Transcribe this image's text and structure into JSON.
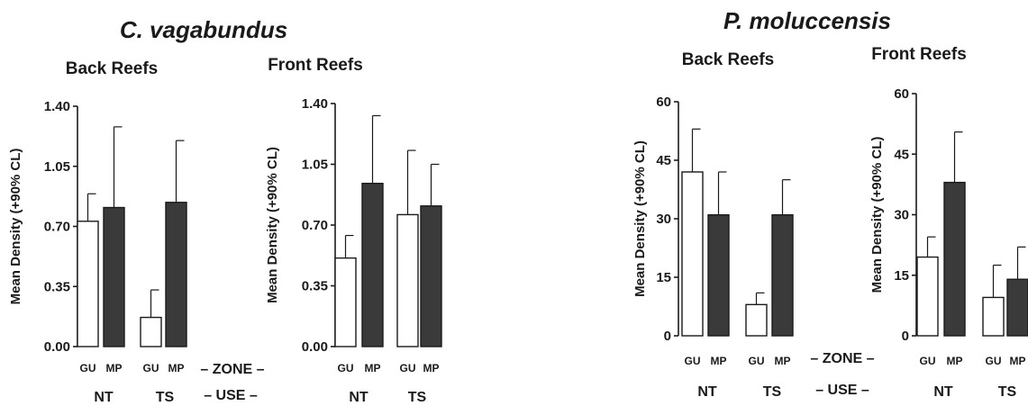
{
  "figure": {
    "axis_labels": {
      "zone": "– ZONE –",
      "use": "– USE –"
    }
  },
  "colors": {
    "GU": "#ffffff",
    "MP": "#3a3a3a",
    "axis": "#1a1a1a"
  },
  "chart_data": [
    {
      "type": "bar",
      "species": "C. vagabundus",
      "title": "Back Reefs",
      "ylabel": "Mean Density (+90% CL)",
      "ylim": [
        0,
        1.4
      ],
      "yticks": [
        "0.00",
        "0.35",
        "0.70",
        "1.05",
        "1.40"
      ],
      "ytick_values": [
        0,
        0.35,
        0.7,
        1.05,
        1.4
      ],
      "groups": [
        "NT",
        "TS"
      ],
      "categories": [
        "GU",
        "MP",
        "GU",
        "MP"
      ],
      "series": [
        {
          "zone": "GU",
          "use": "NT",
          "value": 0.73,
          "upper": 0.89
        },
        {
          "zone": "MP",
          "use": "NT",
          "value": 0.81,
          "upper": 1.28
        },
        {
          "zone": "GU",
          "use": "TS",
          "value": 0.17,
          "upper": 0.33
        },
        {
          "zone": "MP",
          "use": "TS",
          "value": 0.84,
          "upper": 1.2
        }
      ]
    },
    {
      "type": "bar",
      "species": "C. vagabundus",
      "title": "Front Reefs",
      "ylabel": "Mean Density (+90% CL)",
      "ylim": [
        0,
        1.4
      ],
      "yticks": [
        "0.00",
        "0.35",
        "0.70",
        "1.05",
        "1.40"
      ],
      "ytick_values": [
        0,
        0.35,
        0.7,
        1.05,
        1.4
      ],
      "groups": [
        "NT",
        "TS"
      ],
      "categories": [
        "GU",
        "MP",
        "GU",
        "MP"
      ],
      "series": [
        {
          "zone": "GU",
          "use": "NT",
          "value": 0.51,
          "upper": 0.64
        },
        {
          "zone": "MP",
          "use": "NT",
          "value": 0.94,
          "upper": 1.33
        },
        {
          "zone": "GU",
          "use": "TS",
          "value": 0.76,
          "upper": 1.13
        },
        {
          "zone": "MP",
          "use": "TS",
          "value": 0.81,
          "upper": 1.05
        }
      ]
    },
    {
      "type": "bar",
      "species": "P. moluccensis",
      "title": "Back Reefs",
      "ylabel": "Mean Density (+90% CL)",
      "ylim": [
        0,
        60
      ],
      "yticks": [
        "0",
        "15",
        "30",
        "45",
        "60"
      ],
      "ytick_values": [
        0,
        15,
        30,
        45,
        60
      ],
      "groups": [
        "NT",
        "TS"
      ],
      "categories": [
        "GU",
        "MP",
        "GU",
        "MP"
      ],
      "series": [
        {
          "zone": "GU",
          "use": "NT",
          "value": 42,
          "upper": 53
        },
        {
          "zone": "MP",
          "use": "NT",
          "value": 31,
          "upper": 42
        },
        {
          "zone": "GU",
          "use": "TS",
          "value": 8,
          "upper": 11
        },
        {
          "zone": "MP",
          "use": "TS",
          "value": 31,
          "upper": 40
        }
      ]
    },
    {
      "type": "bar",
      "species": "P. moluccensis",
      "title": "Front Reefs",
      "ylabel": "Mean Density (+90% CL)",
      "ylim": [
        0,
        60
      ],
      "yticks": [
        "0",
        "15",
        "30",
        "45",
        "60"
      ],
      "ytick_values": [
        0,
        15,
        30,
        45,
        60
      ],
      "groups": [
        "NT",
        "TS"
      ],
      "categories": [
        "GU",
        "MP",
        "GU",
        "MP"
      ],
      "series": [
        {
          "zone": "GU",
          "use": "NT",
          "value": 19.5,
          "upper": 24.5
        },
        {
          "zone": "MP",
          "use": "NT",
          "value": 38,
          "upper": 50.5
        },
        {
          "zone": "GU",
          "use": "TS",
          "value": 9.5,
          "upper": 17.5
        },
        {
          "zone": "MP",
          "use": "TS",
          "value": 14,
          "upper": 22
        }
      ]
    }
  ]
}
